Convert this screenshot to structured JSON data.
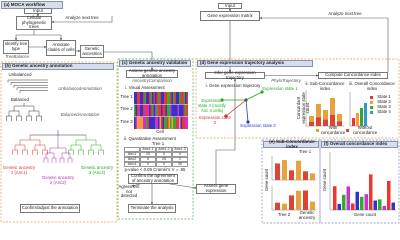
{
  "workflow": {
    "title": "(a) MOCA workflow",
    "input": "Input",
    "trees": "Cellular phylogenetic trees",
    "next_tree": "Analyze next tree",
    "identify": "Identify tree type",
    "tree_balance": "TreeBalance",
    "annotate": "Annotate clades of cells",
    "ancestries": "Genetic ancestries",
    "expr_input": "Input",
    "expr_matrix": "Gene expression matrix",
    "expr_next": "Analyze next tree"
  },
  "annotation": {
    "title": "(b) Genetic ancestry annotation",
    "unbalanced": "Unbalanced",
    "unbalanced_fn": "UnbalancedAnnotation",
    "balanced": "Balanced",
    "balanced_fn": "BalancedAnnotation",
    "anc1": "Genetic ancestry 1 (Anc1)",
    "anc2": "Genetic ancestry 2 (Anc2)",
    "anc3": "Genetic ancestry 3 (Anc3)",
    "confirm": "Confirm/adjust the annotation"
  },
  "validation": {
    "title": "(c) Genetic ancestry validation",
    "assess": "Assess genetic ancestry annotation",
    "fn": "AncestryComparison",
    "visual": "i. Visual Assessment",
    "trees": [
      "Tree 1",
      "Tree 2",
      "Tree 3"
    ],
    "cell_axis": "Cell",
    "quant": "ii. Quantitative Assessment",
    "table": {
      "title": "Tree 1",
      "header": [
        "",
        "Anc1.1",
        "Anc1.2",
        "Anc1.3"
      ],
      "rows": [
        [
          "Anc1",
          "20",
          "0",
          "0"
        ],
        [
          "Anc2",
          "0",
          "25",
          "1"
        ],
        [
          "Anc3",
          "0",
          "0",
          "30"
        ]
      ]
    },
    "stats": "p-value < 0.05    Cramér's V = .95",
    "confirm": "Confirm the agreement of ancestry annotation",
    "not_detected": "Agreement not detected",
    "assess_expr": "Assess gene expression",
    "terminate": "Terminate the analysis"
  },
  "trajectory": {
    "title": "(d) Gene expression trajectory analysis",
    "infer": "Infer gene expression trajectory",
    "fn": "PhyloTrajectory",
    "compute": "Compute Concordance index",
    "traj": "i. Gene expression trajectory",
    "states": [
      "Expression state 1",
      "Expression state 2",
      "Expression state 3",
      "Expression state 4 (mostly Anc 3 cells)"
    ],
    "sub": "ii. Sub-Concordance index",
    "overall": "iii. Overall Concordance index",
    "legend": [
      "With concordance",
      "Without concordance"
    ],
    "state_labels": [
      "State 1",
      "State 2",
      "State 3",
      "State 4"
    ],
    "y_label": "Concordant expression state count"
  },
  "sub_index": {
    "title": "(e) Sub-Concordance index",
    "x_label": "Genetic ancestry",
    "y_label": "Gene count",
    "trees": [
      "Tree 1",
      "Tree 2"
    ]
  },
  "overall_index": {
    "title": "(f) Overall concordance index",
    "x_label": "Gene count",
    "y_label": "Gene count"
  }
}
